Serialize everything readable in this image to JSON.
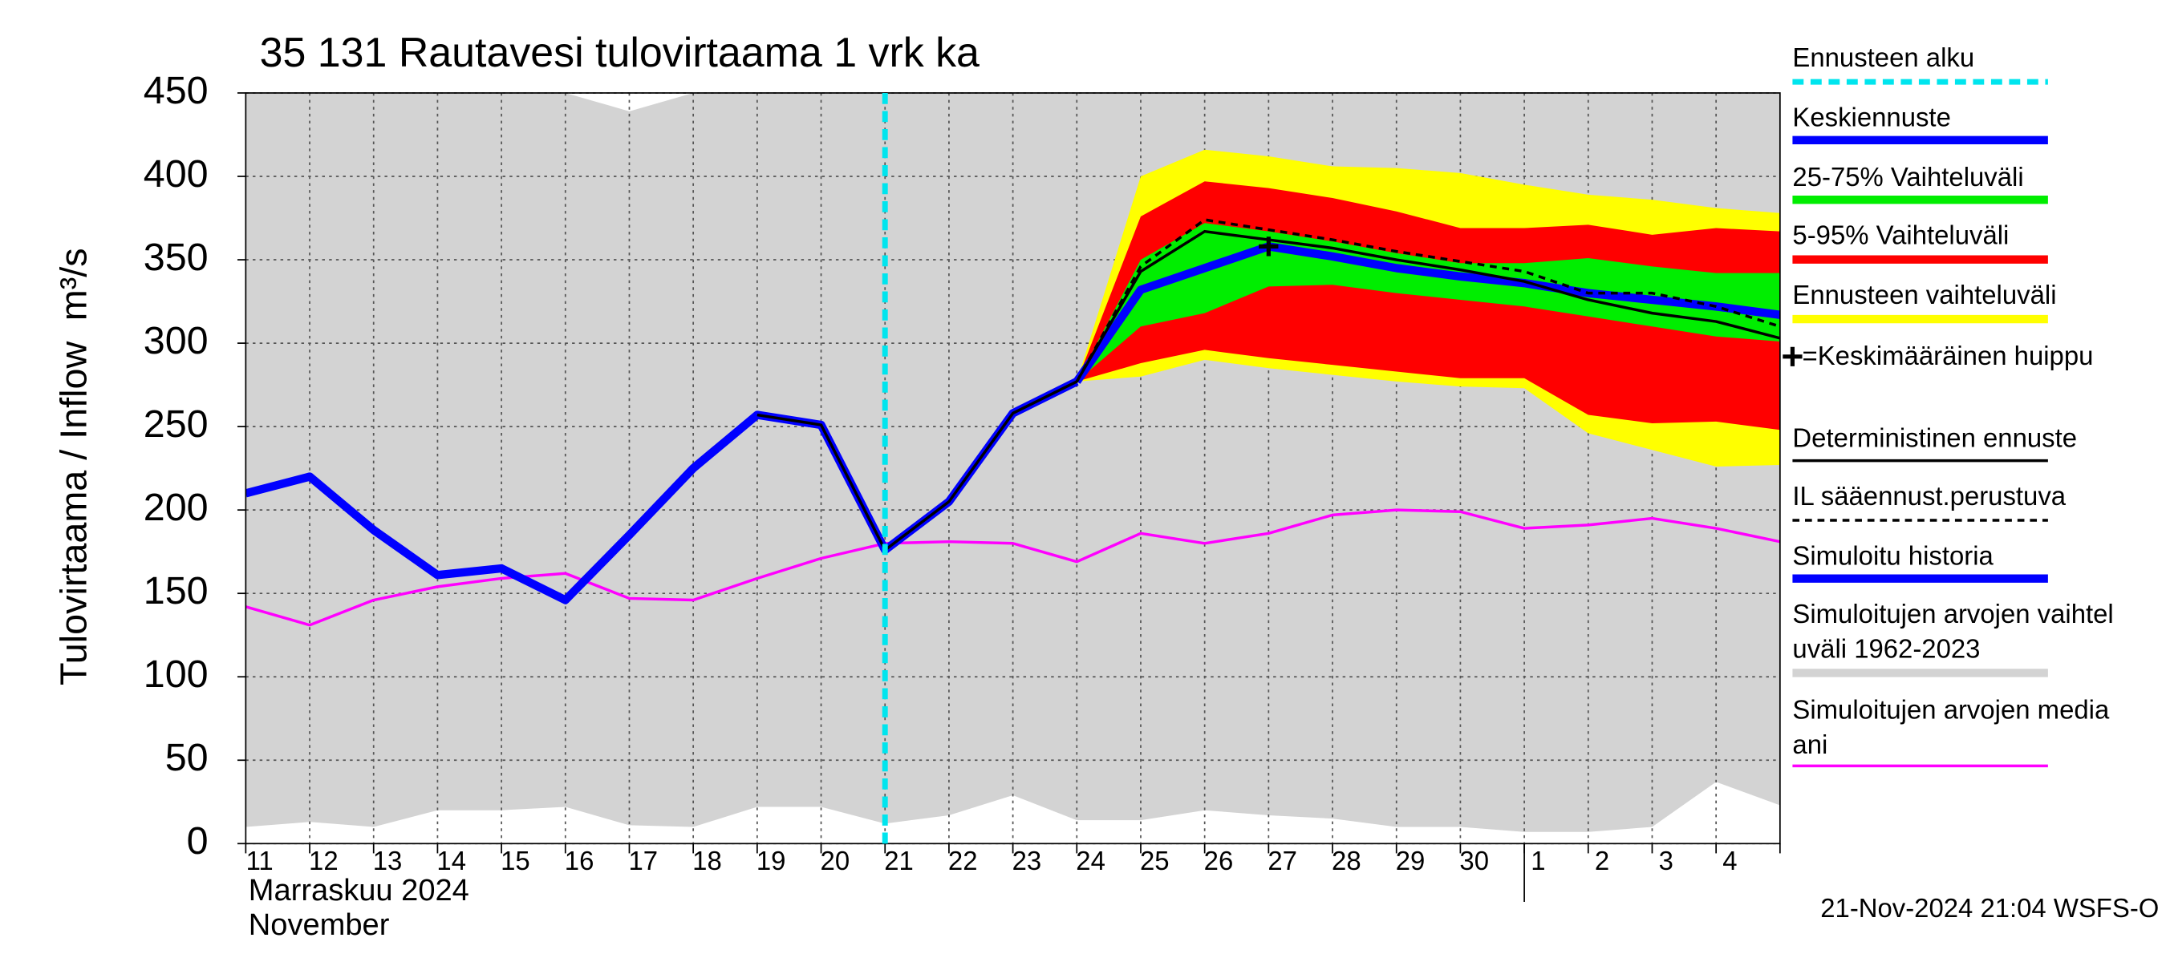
{
  "chart_data": {
    "type": "line",
    "title": "35 131 Rautavesi tulovirtaama 1 vrk ka",
    "y_label": "Tulovirtaama / Inflow",
    "y_unit": "m³/s",
    "month_label": "Marraskuu 2024",
    "month_label_en": "November",
    "timestamp": "21-Nov-2024 21:04 WSFS-O",
    "categories": [
      "11",
      "12",
      "13",
      "14",
      "15",
      "16",
      "17",
      "18",
      "19",
      "20",
      "21",
      "22",
      "23",
      "24",
      "25",
      "26",
      "27",
      "28",
      "29",
      "30",
      "1",
      "2",
      "3",
      "4",
      null
    ],
    "ylim": [
      0,
      450
    ],
    "yticks": [
      0,
      50,
      100,
      150,
      200,
      250,
      300,
      350,
      400,
      450
    ],
    "grid": true,
    "forecast_start": "21",
    "series": [
      {
        "name": "Ennusteen alku",
        "color": "#00e5ee",
        "kind": "vline"
      },
      {
        "name": "Keskiennuste",
        "color": "#0000ff",
        "kind": "thick-line",
        "values": [
          null,
          null,
          null,
          null,
          null,
          null,
          null,
          null,
          null,
          null,
          null,
          null,
          null,
          277,
          332,
          345,
          358,
          352,
          345,
          340,
          336,
          330,
          326,
          322,
          317
        ]
      },
      {
        "name": "25-75% Vaihteluväli",
        "color": "#00ee00",
        "kind": "band",
        "low": [
          null,
          null,
          null,
          null,
          null,
          null,
          null,
          null,
          null,
          null,
          null,
          null,
          null,
          277,
          310,
          318,
          334,
          335,
          330,
          326,
          322,
          316,
          310,
          304,
          301
        ],
        "high": [
          null,
          null,
          null,
          null,
          null,
          null,
          null,
          null,
          null,
          null,
          null,
          null,
          null,
          277,
          350,
          372,
          367,
          361,
          354,
          348,
          348,
          351,
          346,
          342,
          342
        ]
      },
      {
        "name": "5-95% Vaihteluväli",
        "color": "#ff0000",
        "kind": "band",
        "low": [
          null,
          null,
          null,
          null,
          null,
          null,
          null,
          null,
          null,
          null,
          null,
          null,
          null,
          277,
          288,
          296,
          291,
          287,
          283,
          279,
          279,
          257,
          252,
          253,
          248
        ],
        "high": [
          null,
          null,
          null,
          null,
          null,
          null,
          null,
          null,
          null,
          null,
          null,
          null,
          null,
          277,
          376,
          397,
          393,
          387,
          379,
          369,
          369,
          371,
          365,
          369,
          367
        ]
      },
      {
        "name": "Ennusteen vaihteluväli",
        "color": "#ffff00",
        "kind": "band",
        "low": [
          null,
          null,
          null,
          null,
          null,
          null,
          null,
          null,
          null,
          null,
          null,
          null,
          null,
          277,
          280,
          290,
          285,
          281,
          277,
          274,
          273,
          246,
          236,
          226,
          227
        ],
        "high": [
          null,
          null,
          null,
          null,
          null,
          null,
          null,
          null,
          null,
          null,
          null,
          null,
          null,
          277,
          400,
          416,
          412,
          406,
          405,
          402,
          395,
          389,
          386,
          381,
          378
        ]
      },
      {
        "name": "=Keskimääräinen huippu",
        "color": "#000000",
        "kind": "marker",
        "values": [
          null,
          null,
          null,
          null,
          null,
          null,
          null,
          null,
          null,
          null,
          null,
          null,
          null,
          null,
          null,
          null,
          358,
          null,
          null,
          null,
          null,
          null,
          null,
          null,
          null
        ]
      },
      {
        "name": "Deterministinen ennuste",
        "color": "#000000",
        "kind": "line",
        "values": [
          null,
          null,
          null,
          null,
          null,
          null,
          null,
          null,
          257,
          251,
          176,
          205,
          258,
          277,
          343,
          367,
          362,
          357,
          350,
          344,
          337,
          326,
          318,
          313,
          303
        ]
      },
      {
        "name": "IL sääennust.perustuva",
        "color": "#000000",
        "kind": "dashed-line",
        "values": [
          null,
          null,
          null,
          null,
          null,
          null,
          null,
          null,
          null,
          null,
          null,
          null,
          null,
          277,
          346,
          374,
          368,
          362,
          355,
          349,
          343,
          330,
          330,
          322,
          310
        ]
      },
      {
        "name": "Simuloitu historia",
        "color": "#0000ff",
        "kind": "thick-line",
        "values": [
          210,
          220,
          188,
          161,
          165,
          146,
          185,
          225,
          257,
          251,
          176,
          205,
          258,
          277,
          null,
          null,
          null,
          null,
          null,
          null,
          null,
          null,
          null,
          null,
          null
        ]
      },
      {
        "name": "Simuloitujen arvojen vaihteluväli 1962-2023",
        "color": "#d3d3d3",
        "kind": "band",
        "low": [
          10,
          13,
          10,
          20,
          20,
          22,
          11,
          10,
          22,
          22,
          12,
          17,
          29,
          14,
          14,
          20,
          17,
          15,
          10,
          10,
          7,
          7,
          10,
          37,
          23
        ],
        "high": [
          450,
          450,
          450,
          450,
          450,
          450,
          439,
          450,
          450,
          450,
          450,
          450,
          450,
          450,
          450,
          450,
          450,
          450,
          450,
          450,
          450,
          450,
          450,
          450,
          450
        ]
      },
      {
        "name": "Simuloitujen arvojen mediaani",
        "color": "#ff00ff",
        "kind": "line",
        "values": [
          142,
          131,
          146,
          154,
          159,
          162,
          147,
          146,
          159,
          171,
          180,
          181,
          180,
          169,
          186,
          180,
          186,
          197,
          200,
          199,
          189,
          191,
          195,
          189,
          181
        ]
      }
    ]
  }
}
